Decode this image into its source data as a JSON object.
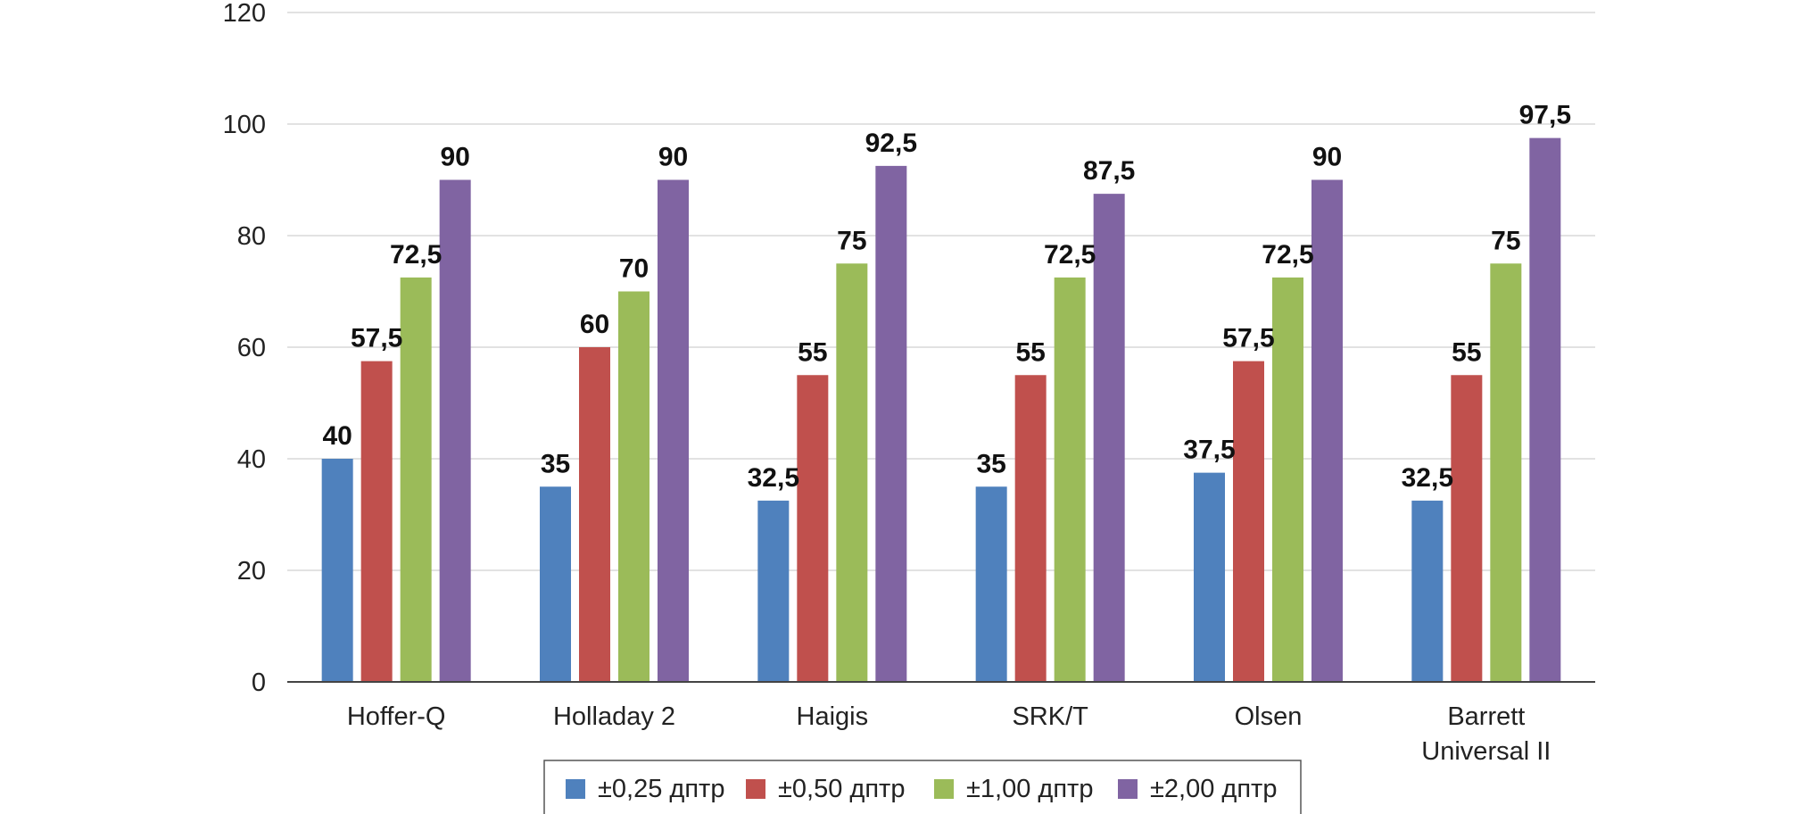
{
  "chart_data": {
    "type": "bar",
    "title": "",
    "xlabel": "",
    "ylabel": "",
    "ylim": [
      0,
      120
    ],
    "yticks": [
      0,
      20,
      40,
      60,
      80,
      100,
      120
    ],
    "grid": true,
    "legend_position": "bottom",
    "categories": [
      [
        "Hoffer-Q"
      ],
      [
        "Holladay 2"
      ],
      [
        "Haigis"
      ],
      [
        "SRK/T"
      ],
      [
        "Olsen"
      ],
      [
        "Barrett",
        "Universal II"
      ]
    ],
    "series": [
      {
        "name": "±0,25 дптр",
        "color": "#4f81bd",
        "values": [
          40,
          35,
          32.5,
          35,
          37.5,
          32.5
        ],
        "labels": [
          "40",
          "35",
          "32,5",
          "35",
          "37,5",
          "32,5"
        ]
      },
      {
        "name": "±0,50 дптр",
        "color": "#c0504d",
        "values": [
          57.5,
          60,
          55,
          55,
          57.5,
          55
        ],
        "labels": [
          "57,5",
          "60",
          "55",
          "55",
          "57,5",
          "55"
        ]
      },
      {
        "name": "±1,00 дптр",
        "color": "#9bbb59",
        "values": [
          72.5,
          70,
          75,
          72.5,
          72.5,
          75
        ],
        "labels": [
          "72,5",
          "70",
          "75",
          "72,5",
          "72,5",
          "75"
        ]
      },
      {
        "name": "±2,00 дптр",
        "color": "#8064a2",
        "values": [
          90,
          90,
          92.5,
          87.5,
          90,
          97.5
        ],
        "labels": [
          "90",
          "90",
          "92,5",
          "87,5",
          "90",
          "97,5"
        ]
      }
    ]
  }
}
